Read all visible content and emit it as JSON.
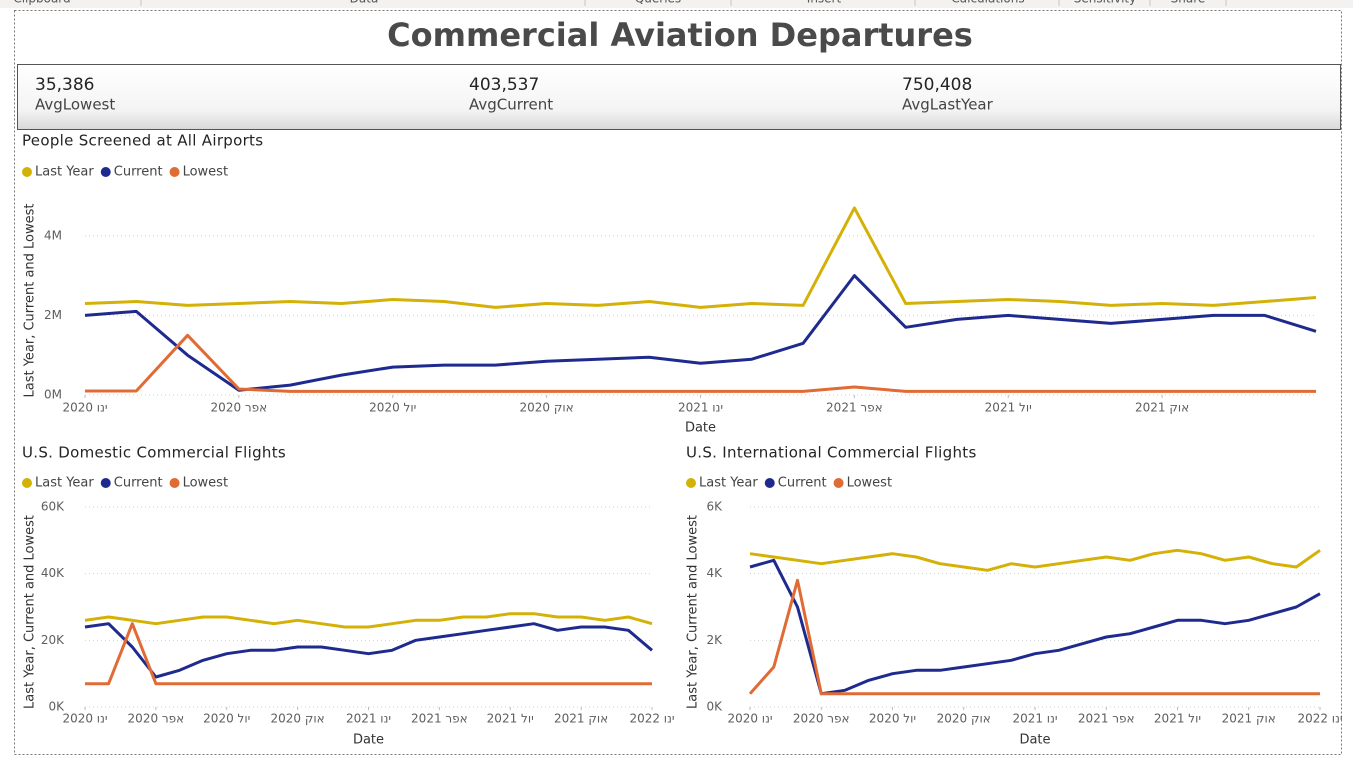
{
  "ribbon": [
    "Clipboard",
    "Data",
    "Queries",
    "Insert",
    "Calculations",
    "Sensitivity",
    "Share"
  ],
  "header": {
    "title": "Commercial Aviation Departures"
  },
  "cards": [
    {
      "value": "35,386",
      "name": "AvgLowest"
    },
    {
      "value": "403,537",
      "name": "AvgCurrent"
    },
    {
      "value": "750,408",
      "name": "AvgLastYear"
    }
  ],
  "chart_data": [
    {
      "type": "line",
      "title": "People Screened at All Airports",
      "x_label": "Date",
      "y_label": "Last Year, Current and Lowest",
      "legend": "top-left",
      "grid": true,
      "x": [
        "2020-01",
        "2020-02",
        "2020-03",
        "2020-04",
        "2020-05",
        "2020-06",
        "2020-07",
        "2020-08",
        "2020-09",
        "2020-10",
        "2020-11",
        "2020-12",
        "2021-01",
        "2021-02",
        "2021-03",
        "2021-04",
        "2021-05",
        "2021-06",
        "2021-07",
        "2021-08",
        "2021-09",
        "2021-10",
        "2021-11",
        "2021-12",
        "2022-01"
      ],
      "xlim": [
        "2020-01",
        "2022-01"
      ],
      "xticks": [
        {
          "value": "2020-01",
          "label": "ינו 2020"
        },
        {
          "value": "2020-04",
          "label": "אפר 2020"
        },
        {
          "value": "2020-07",
          "label": "יול 2020"
        },
        {
          "value": "2020-10",
          "label": "אוק 2020"
        },
        {
          "value": "2021-01",
          "label": "ינו 2021"
        },
        {
          "value": "2021-04",
          "label": "אפר 2021"
        },
        {
          "value": "2021-07",
          "label": "יול 2021"
        },
        {
          "value": "2021-10",
          "label": "אוק 2021"
        }
      ],
      "ylim": [
        0,
        5000000
      ],
      "yticks": [
        {
          "value": 0,
          "label": "0M"
        },
        {
          "value": 2000000,
          "label": "2M"
        },
        {
          "value": 4000000,
          "label": "4M"
        }
      ],
      "series": [
        {
          "name": "Last Year",
          "color": "#d4b106",
          "values": [
            2300000,
            2350000,
            2250000,
            2300000,
            2350000,
            2300000,
            2400000,
            2350000,
            2200000,
            2300000,
            2250000,
            2350000,
            2200000,
            2300000,
            2250000,
            4700000,
            2300000,
            2350000,
            2400000,
            2350000,
            2250000,
            2300000,
            2250000,
            2350000,
            2450000
          ]
        },
        {
          "name": "Current",
          "color": "#1f2a8f",
          "values": [
            2000000,
            2100000,
            1000000,
            120000,
            250000,
            500000,
            700000,
            750000,
            750000,
            850000,
            900000,
            950000,
            800000,
            900000,
            1300000,
            3000000,
            1700000,
            1900000,
            2000000,
            1900000,
            1800000,
            1900000,
            2000000,
            2000000,
            1600000
          ]
        },
        {
          "name": "Lowest",
          "color": "#e06b34",
          "values": [
            100000,
            100000,
            1500000,
            150000,
            90000,
            90000,
            90000,
            90000,
            90000,
            90000,
            90000,
            90000,
            90000,
            90000,
            90000,
            200000,
            90000,
            90000,
            90000,
            90000,
            90000,
            90000,
            90000,
            90000,
            90000
          ]
        }
      ]
    },
    {
      "type": "line",
      "title": "U.S. Domestic Commercial Flights",
      "x_label": "Date",
      "y_label": "Last Year, Current and Lowest",
      "legend": "top-left",
      "grid": true,
      "x": [
        "2020-01",
        "2020-02",
        "2020-03",
        "2020-04",
        "2020-05",
        "2020-06",
        "2020-07",
        "2020-08",
        "2020-09",
        "2020-10",
        "2020-11",
        "2020-12",
        "2021-01",
        "2021-02",
        "2021-03",
        "2021-04",
        "2021-05",
        "2021-06",
        "2021-07",
        "2021-08",
        "2021-09",
        "2021-10",
        "2021-11",
        "2021-12",
        "2022-01"
      ],
      "xlim": [
        "2020-01",
        "2022-01"
      ],
      "xticks": [
        {
          "value": "2020-01",
          "label": "ינו 2020"
        },
        {
          "value": "2020-04",
          "label": "אפר 2020"
        },
        {
          "value": "2020-07",
          "label": "יול 2020"
        },
        {
          "value": "2020-10",
          "label": "אוק 2020"
        },
        {
          "value": "2021-01",
          "label": "ינו 2021"
        },
        {
          "value": "2021-04",
          "label": "אפר 2021"
        },
        {
          "value": "2021-07",
          "label": "יול 2021"
        },
        {
          "value": "2021-10",
          "label": "אוק 2021"
        },
        {
          "value": "2022-01",
          "label": "ינו 2022"
        }
      ],
      "ylim": [
        0,
        60000
      ],
      "yticks": [
        {
          "value": 0,
          "label": "0K"
        },
        {
          "value": 20000,
          "label": "20K"
        },
        {
          "value": 40000,
          "label": "40K"
        },
        {
          "value": 60000,
          "label": "60K"
        }
      ],
      "series": [
        {
          "name": "Last Year",
          "color": "#d4b106",
          "values": [
            26000,
            27000,
            26000,
            25000,
            26000,
            27000,
            27000,
            26000,
            25000,
            26000,
            25000,
            24000,
            24000,
            25000,
            26000,
            26000,
            27000,
            27000,
            28000,
            28000,
            27000,
            27000,
            26000,
            27000,
            25000
          ]
        },
        {
          "name": "Current",
          "color": "#1f2a8f",
          "values": [
            24000,
            25000,
            18000,
            9000,
            11000,
            14000,
            16000,
            17000,
            17000,
            18000,
            18000,
            17000,
            16000,
            17000,
            20000,
            21000,
            22000,
            23000,
            24000,
            25000,
            23000,
            24000,
            24000,
            23000,
            17000
          ]
        },
        {
          "name": "Lowest",
          "color": "#e06b34",
          "values": [
            7000,
            7000,
            25000,
            7000,
            7000,
            7000,
            7000,
            7000,
            7000,
            7000,
            7000,
            7000,
            7000,
            7000,
            7000,
            7000,
            7000,
            7000,
            7000,
            7000,
            7000,
            7000,
            7000,
            7000,
            7000
          ]
        }
      ]
    },
    {
      "type": "line",
      "title": "U.S. International Commercial Flights",
      "x_label": "Date",
      "y_label": "Last Year, Current and Lowest",
      "legend": "top-left",
      "grid": true,
      "x": [
        "2020-01",
        "2020-02",
        "2020-03",
        "2020-04",
        "2020-05",
        "2020-06",
        "2020-07",
        "2020-08",
        "2020-09",
        "2020-10",
        "2020-11",
        "2020-12",
        "2021-01",
        "2021-02",
        "2021-03",
        "2021-04",
        "2021-05",
        "2021-06",
        "2021-07",
        "2021-08",
        "2021-09",
        "2021-10",
        "2021-11",
        "2021-12",
        "2022-01"
      ],
      "xlim": [
        "2020-01",
        "2022-01"
      ],
      "xticks": [
        {
          "value": "2020-01",
          "label": "ינו 2020"
        },
        {
          "value": "2020-04",
          "label": "אפר 2020"
        },
        {
          "value": "2020-07",
          "label": "יול 2020"
        },
        {
          "value": "2020-10",
          "label": "אוק 2020"
        },
        {
          "value": "2021-01",
          "label": "ינו 2021"
        },
        {
          "value": "2021-04",
          "label": "אפר 2021"
        },
        {
          "value": "2021-07",
          "label": "יול 2021"
        },
        {
          "value": "2021-10",
          "label": "אוק 2021"
        },
        {
          "value": "2022-01",
          "label": "ינו 2022"
        }
      ],
      "ylim": [
        0,
        6000
      ],
      "yticks": [
        {
          "value": 0,
          "label": "0K"
        },
        {
          "value": 2000,
          "label": "2K"
        },
        {
          "value": 4000,
          "label": "4K"
        },
        {
          "value": 6000,
          "label": "6K"
        }
      ],
      "series": [
        {
          "name": "Last Year",
          "color": "#d4b106",
          "values": [
            4600,
            4500,
            4400,
            4300,
            4400,
            4500,
            4600,
            4500,
            4300,
            4200,
            4100,
            4300,
            4200,
            4300,
            4400,
            4500,
            4400,
            4600,
            4700,
            4600,
            4400,
            4500,
            4300,
            4200,
            4700
          ]
        },
        {
          "name": "Current",
          "color": "#1f2a8f",
          "values": [
            4200,
            4400,
            3000,
            400,
            500,
            800,
            1000,
            1100,
            1100,
            1200,
            1300,
            1400,
            1600,
            1700,
            1900,
            2100,
            2200,
            2400,
            2600,
            2600,
            2500,
            2600,
            2800,
            3000,
            3400
          ]
        },
        {
          "name": "Lowest",
          "color": "#e06b34",
          "values": [
            400,
            1200,
            3800,
            400,
            400,
            400,
            400,
            400,
            400,
            400,
            400,
            400,
            400,
            400,
            400,
            400,
            400,
            400,
            400,
            400,
            400,
            400,
            400,
            400,
            400
          ]
        }
      ]
    }
  ]
}
